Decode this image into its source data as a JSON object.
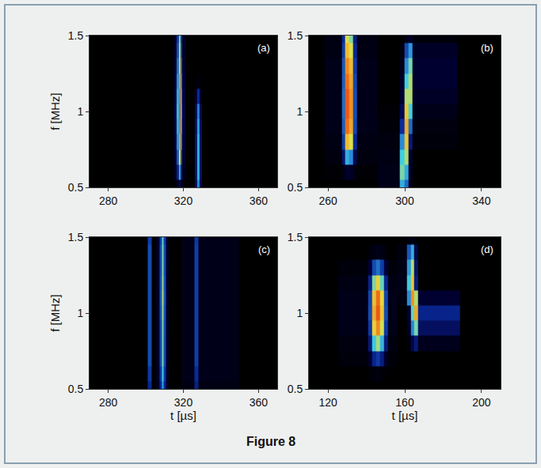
{
  "caption": "Figure 8",
  "chart_data": [
    {
      "type": "heatmap",
      "panel": "(a)",
      "ylabel": "f [MHz]",
      "xlim": [
        270,
        370
      ],
      "xticks": [
        280,
        320,
        360
      ],
      "ylim": [
        0.5,
        1.5
      ],
      "yticks": [
        0.5,
        1,
        1.5
      ],
      "zlim": [
        0,
        1
      ],
      "x": [
        270,
        314,
        316,
        317,
        318,
        319,
        320,
        322,
        325,
        327,
        328,
        329,
        331,
        370
      ],
      "y": [
        0.5,
        0.6,
        0.7,
        0.8,
        0.9,
        1.0,
        1.1,
        1.2,
        1.3,
        1.4,
        1.5
      ],
      "z": [
        [
          0,
          0,
          0.02,
          0.07,
          0.15,
          0.07,
          0.02,
          0,
          0,
          0.16,
          0.4,
          0.16,
          0,
          0
        ],
        [
          0,
          0,
          0.07,
          0.22,
          0.45,
          0.22,
          0.07,
          0,
          0,
          0.18,
          0.45,
          0.18,
          0,
          0
        ],
        [
          0,
          0,
          0.1,
          0.32,
          0.65,
          0.32,
          0.1,
          0,
          0,
          0.18,
          0.45,
          0.18,
          0,
          0
        ],
        [
          0,
          0,
          0.12,
          0.4,
          0.8,
          0.4,
          0.12,
          0,
          0,
          0.18,
          0.45,
          0.18,
          0,
          0
        ],
        [
          0,
          0,
          0.13,
          0.44,
          0.88,
          0.44,
          0.13,
          0,
          0,
          0.17,
          0.42,
          0.17,
          0,
          0
        ],
        [
          0,
          0,
          0.14,
          0.46,
          0.92,
          0.46,
          0.14,
          0,
          0,
          0.15,
          0.38,
          0.15,
          0,
          0
        ],
        [
          0,
          0,
          0.13,
          0.44,
          0.88,
          0.44,
          0.13,
          0,
          0,
          0.1,
          0.25,
          0.1,
          0,
          0
        ],
        [
          0,
          0,
          0.12,
          0.4,
          0.8,
          0.4,
          0.12,
          0,
          0,
          0,
          0.05,
          0,
          0,
          0
        ],
        [
          0,
          0,
          0.1,
          0.35,
          0.7,
          0.35,
          0.1,
          0,
          0,
          0,
          0,
          0,
          0,
          0
        ],
        [
          0,
          0,
          0.09,
          0.3,
          0.6,
          0.3,
          0.09,
          0,
          0,
          0,
          0,
          0,
          0,
          0
        ],
        [
          0,
          0,
          0.08,
          0.27,
          0.55,
          0.27,
          0.08,
          0,
          0,
          0,
          0,
          0,
          0,
          0
        ]
      ]
    },
    {
      "type": "heatmap",
      "panel": "(b)",
      "xlim": [
        250,
        350
      ],
      "xticks": [
        260,
        300,
        340
      ],
      "ylim": [
        0.5,
        1.5
      ],
      "yticks": [
        0.5,
        1,
        1.5
      ],
      "zlim": [
        0,
        1
      ],
      "x": [
        250,
        266,
        268,
        270,
        272,
        274,
        276,
        296,
        299,
        301,
        303,
        305,
        350
      ],
      "y": [
        0.5,
        0.6,
        0.7,
        0.8,
        0.9,
        1.0,
        1.1,
        1.2,
        1.3,
        1.4,
        1.5
      ],
      "z": [
        [
          0,
          0,
          0,
          0,
          0,
          0,
          0,
          0.05,
          0.45,
          0.35,
          0.05,
          0,
          0
        ],
        [
          0,
          0.01,
          0.04,
          0.09,
          0.08,
          0.03,
          0.01,
          0.05,
          0.55,
          0.45,
          0.08,
          0,
          0
        ],
        [
          0,
          0.03,
          0.18,
          0.45,
          0.4,
          0.15,
          0.03,
          0.04,
          0.5,
          0.6,
          0.1,
          0,
          0
        ],
        [
          0,
          0.04,
          0.28,
          0.72,
          0.64,
          0.24,
          0.04,
          0.03,
          0.4,
          0.7,
          0.2,
          0.02,
          0
        ],
        [
          0,
          0.05,
          0.33,
          0.86,
          0.76,
          0.29,
          0.05,
          0.02,
          0.25,
          0.75,
          0.35,
          0.03,
          0
        ],
        [
          0,
          0.05,
          0.35,
          0.9,
          0.8,
          0.3,
          0.05,
          0.01,
          0.15,
          0.7,
          0.5,
          0.05,
          0
        ],
        [
          0,
          0.05,
          0.35,
          0.9,
          0.8,
          0.3,
          0.05,
          0,
          0.1,
          0.6,
          0.6,
          0.08,
          0
        ],
        [
          0,
          0.05,
          0.33,
          0.86,
          0.76,
          0.29,
          0.05,
          0,
          0.08,
          0.5,
          0.6,
          0.1,
          0
        ],
        [
          0,
          0.05,
          0.32,
          0.81,
          0.72,
          0.27,
          0.05,
          0,
          0.05,
          0.4,
          0.55,
          0.1,
          0
        ],
        [
          0,
          0.04,
          0.28,
          0.72,
          0.64,
          0.24,
          0.04,
          0,
          0.03,
          0.3,
          0.42,
          0.08,
          0
        ],
        [
          0,
          0.04,
          0.25,
          0.63,
          0.56,
          0.21,
          0.04,
          0,
          0,
          0.06,
          0.09,
          0.02,
          0
        ]
      ]
    },
    {
      "type": "heatmap",
      "panel": "(c)",
      "xlabel": "t [µs]",
      "ylabel": "f [MHz]",
      "xlim": [
        270,
        370
      ],
      "xticks": [
        280,
        320,
        360
      ],
      "ylim": [
        0.5,
        1.5
      ],
      "yticks": [
        0.5,
        1,
        1.5
      ],
      "zlim": [
        0,
        1
      ],
      "x": [
        270,
        300,
        302,
        304,
        307,
        308,
        309,
        310,
        311,
        313,
        325,
        327,
        329,
        370
      ],
      "y": [
        0.5,
        0.6,
        0.7,
        0.8,
        0.9,
        1.0,
        1.1,
        1.2,
        1.3,
        1.4,
        1.5
      ],
      "z": [
        [
          0,
          0,
          0.24,
          0,
          0.08,
          0.24,
          0.44,
          0.24,
          0.08,
          0,
          0.04,
          0.22,
          0.04,
          0
        ],
        [
          0,
          0,
          0.27,
          0,
          0.09,
          0.27,
          0.5,
          0.27,
          0.09,
          0,
          0.05,
          0.25,
          0.05,
          0
        ],
        [
          0,
          0,
          0.3,
          0,
          0.1,
          0.3,
          0.55,
          0.3,
          0.1,
          0,
          0.05,
          0.28,
          0.05,
          0
        ],
        [
          0,
          0,
          0.3,
          0,
          0.1,
          0.3,
          0.55,
          0.3,
          0.1,
          0,
          0.05,
          0.28,
          0.05,
          0
        ],
        [
          0,
          0,
          0.3,
          0,
          0.1,
          0.3,
          0.56,
          0.3,
          0.1,
          0,
          0.05,
          0.28,
          0.05,
          0
        ],
        [
          0,
          0,
          0.3,
          0,
          0.1,
          0.31,
          0.58,
          0.31,
          0.1,
          0,
          0.05,
          0.28,
          0.05,
          0
        ],
        [
          0,
          0,
          0.3,
          0,
          0.1,
          0.32,
          0.6,
          0.32,
          0.1,
          0,
          0.05,
          0.28,
          0.05,
          0
        ],
        [
          0,
          0,
          0.3,
          0,
          0.1,
          0.31,
          0.58,
          0.31,
          0.1,
          0,
          0.05,
          0.28,
          0.05,
          0
        ],
        [
          0,
          0,
          0.3,
          0,
          0.1,
          0.3,
          0.56,
          0.3,
          0.1,
          0,
          0.05,
          0.28,
          0.05,
          0
        ],
        [
          0,
          0,
          0.3,
          0,
          0.1,
          0.3,
          0.55,
          0.3,
          0.1,
          0,
          0.05,
          0.28,
          0.05,
          0
        ],
        [
          0,
          0,
          0.28,
          0,
          0.1,
          0.28,
          0.52,
          0.28,
          0.1,
          0,
          0.05,
          0.27,
          0.05,
          0
        ]
      ]
    },
    {
      "type": "heatmap",
      "panel": "(d)",
      "xlabel": "t [µs]",
      "xlim": [
        110,
        210
      ],
      "xticks": [
        120,
        160,
        200
      ],
      "ylim": [
        0.5,
        1.5
      ],
      "yticks": [
        0.5,
        1,
        1.5
      ],
      "zlim": [
        0,
        1
      ],
      "x": [
        110,
        140,
        142,
        144,
        146,
        148,
        150,
        152,
        160,
        162,
        164,
        166,
        168,
        210
      ],
      "y": [
        0.5,
        0.6,
        0.7,
        0.8,
        0.9,
        1.0,
        1.1,
        1.2,
        1.3,
        1.4,
        1.5
      ],
      "z": [
        [
          0,
          0,
          0,
          0,
          0,
          0,
          0,
          0,
          0,
          0,
          0,
          0,
          0,
          0
        ],
        [
          0,
          0,
          0.01,
          0.02,
          0.03,
          0.02,
          0.01,
          0,
          0,
          0,
          0,
          0,
          0,
          0
        ],
        [
          0,
          0.02,
          0.09,
          0.23,
          0.27,
          0.21,
          0.09,
          0.02,
          0,
          0,
          0,
          0,
          0,
          0
        ],
        [
          0,
          0.03,
          0.2,
          0.49,
          0.59,
          0.46,
          0.2,
          0.03,
          0,
          0.03,
          0.14,
          0.2,
          0.06,
          0
        ],
        [
          0,
          0.05,
          0.27,
          0.68,
          0.81,
          0.63,
          0.27,
          0.05,
          0,
          0.08,
          0.39,
          0.55,
          0.17,
          0
        ],
        [
          0,
          0.05,
          0.3,
          0.75,
          0.9,
          0.7,
          0.3,
          0.05,
          0,
          0.11,
          0.53,
          0.75,
          0.23,
          0
        ],
        [
          0,
          0.05,
          0.29,
          0.71,
          0.86,
          0.67,
          0.29,
          0.05,
          0.03,
          0.4,
          0.8,
          0.6,
          0.1,
          0
        ],
        [
          0,
          0.04,
          0.23,
          0.56,
          0.68,
          0.53,
          0.23,
          0.04,
          0.05,
          0.49,
          0.7,
          0.21,
          0,
          0
        ],
        [
          0,
          0.02,
          0.12,
          0.3,
          0.36,
          0.28,
          0.12,
          0.02,
          0.04,
          0.42,
          0.6,
          0.18,
          0,
          0
        ],
        [
          0,
          0,
          0.02,
          0.04,
          0.05,
          0.04,
          0.02,
          0,
          0.03,
          0.32,
          0.45,
          0.14,
          0,
          0
        ],
        [
          0,
          0,
          0,
          0,
          0,
          0,
          0,
          0,
          0,
          0.04,
          0.05,
          0.02,
          0,
          0
        ]
      ]
    }
  ]
}
